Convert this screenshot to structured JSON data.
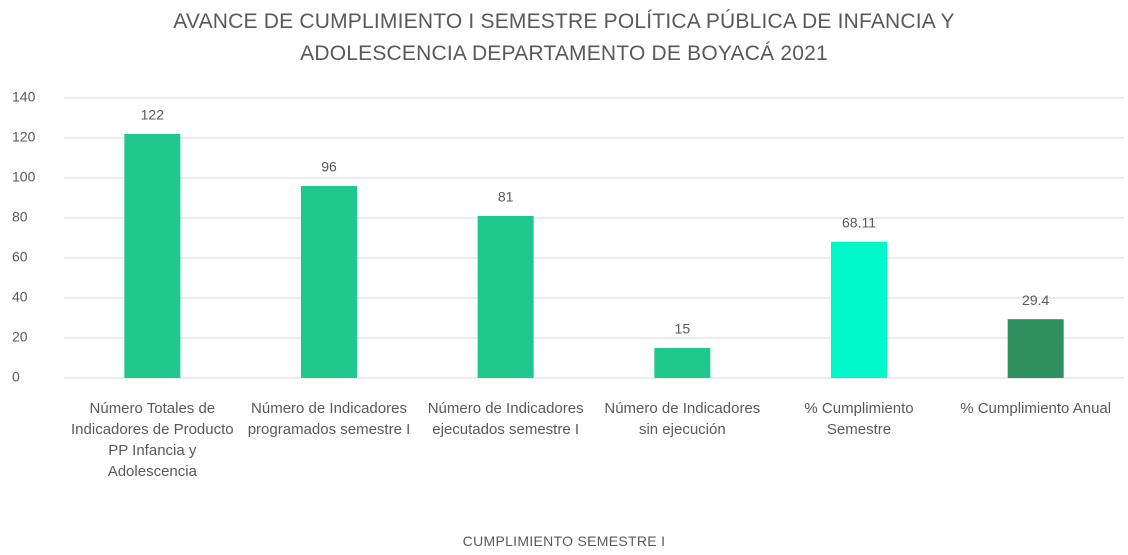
{
  "chart_data": {
    "type": "bar",
    "title": "AVANCE  DE CUMPLIMIENTO I SEMESTRE POLÍTICA PÚBLICA DE INFANCIA Y ADOLESCENCIA DEPARTAMENTO DE BOYACÁ 2021",
    "x_label": "CUMPLIMIENTO SEMESTRE I",
    "categories": [
      "Número Totales de Indicadores de Producto  PP Infancia y Adolescencia",
      "Número de Indicadores programados semestre I",
      "Número de Indicadores ejecutados semestre I",
      "Número de Indicadores sin ejecución",
      "% Cumplimiento Semestre",
      "% Cumplimiento Anual"
    ],
    "values": [
      122,
      96,
      81,
      15,
      68.11,
      29.4
    ],
    "colors": [
      "#1fc98e",
      "#1fc98e",
      "#1fc98e",
      "#1fc98e",
      "#00f7c9",
      "#2f8f5e"
    ],
    "ylim": [
      0,
      140
    ],
    "yticks": [
      0,
      20,
      40,
      60,
      80,
      100,
      120,
      140
    ],
    "grid": true
  }
}
